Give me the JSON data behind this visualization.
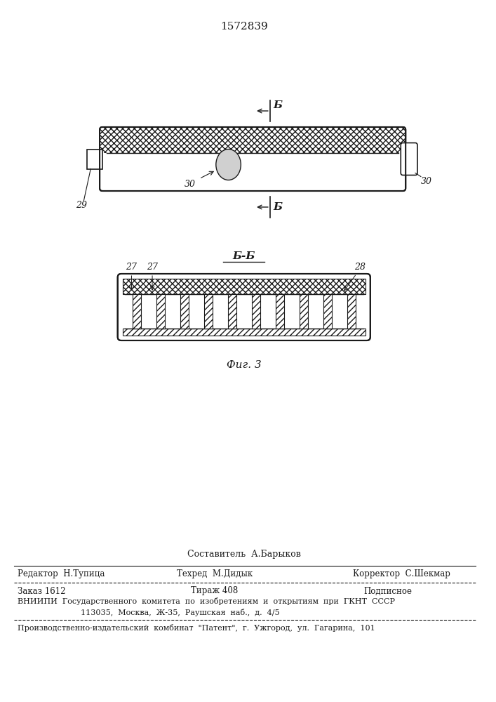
{
  "patent_number": "1572839",
  "fig_label": "Фиг. 3",
  "section_label": "Б-Б",
  "bg_color": "#ffffff",
  "text_color": "#1a1a1a",
  "footer": {
    "line1_center": "Составитель  А.Барыков",
    "line2_left": "Редактор  Н.Тупица",
    "line2_center": "Техред  М.Дидык",
    "line2_right": "Корректор  С.Шекмар",
    "line3_left": "Заказ 1612",
    "line3_center": "Тираж 408",
    "line3_right": "Подписное",
    "line4": "ВНИИПИ  Государственного  комитета  по  изобретениям  и  открытиям  при  ГКНТ  СССР",
    "line5": "113035,  Москва,  Ж-35,  Раушская  наб.,  д.  4/5",
    "line6": "Производственно-издательский  комбинат  \"Патент\",  г.  Ужгород,  ул.  Гагарина,  101"
  }
}
